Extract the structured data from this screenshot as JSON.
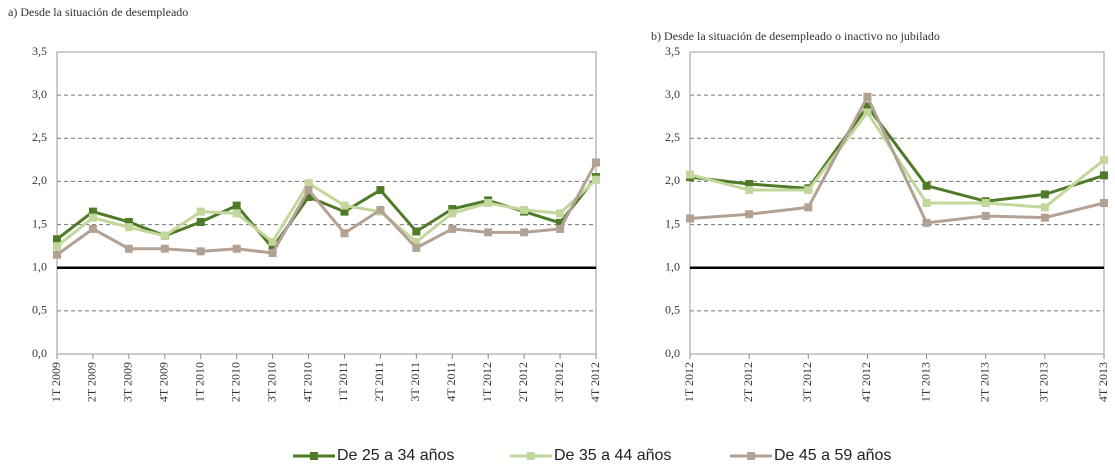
{
  "chart_data": [
    {
      "type": "line",
      "title": "a) Desde la situación de desempleado",
      "categories": [
        "1T 2009",
        "2T 2009",
        "3T 2009",
        "4T 2009",
        "1T 2010",
        "2T 2010",
        "3T 2010",
        "4T 2010",
        "1T 2011",
        "2T 2011",
        "3T 2011",
        "4T 2011",
        "1T 2012",
        "2T 2012",
        "3T 2012",
        "4T 2012"
      ],
      "series": [
        {
          "name": "De 25 a 34 años",
          "color": "#4f7a28",
          "values": [
            1.33,
            1.65,
            1.53,
            1.37,
            1.53,
            1.72,
            1.23,
            1.82,
            1.65,
            1.9,
            1.42,
            1.68,
            1.78,
            1.65,
            1.52,
            2.05
          ]
        },
        {
          "name": "De 35 a 44 años",
          "color": "#c3d69b",
          "values": [
            1.25,
            1.58,
            1.47,
            1.37,
            1.65,
            1.63,
            1.3,
            1.98,
            1.72,
            1.65,
            1.3,
            1.63,
            1.75,
            1.67,
            1.63,
            2.02
          ]
        },
        {
          "name": "De 45 a 59 años",
          "color": "#b3a193",
          "values": [
            1.15,
            1.45,
            1.22,
            1.22,
            1.19,
            1.22,
            1.17,
            1.9,
            1.4,
            1.67,
            1.23,
            1.45,
            1.41,
            1.41,
            1.45,
            2.22
          ]
        }
      ],
      "ylim": [
        0,
        3.5
      ],
      "yticks": [
        {
          "value": 0,
          "label": "0,0"
        },
        {
          "value": 0.5,
          "label": "0,5"
        },
        {
          "value": 1,
          "label": "1,0"
        },
        {
          "value": 1.5,
          "label": "1,5"
        },
        {
          "value": 2,
          "label": "2,0"
        },
        {
          "value": 2.5,
          "label": "2,5"
        },
        {
          "value": 3,
          "label": "3,0"
        },
        {
          "value": 3.5,
          "label": "3,5"
        }
      ],
      "grid": true,
      "reference_line": 1
    },
    {
      "type": "line",
      "title": "b) Desde la situación de desempleado o inactivo no jubilado",
      "categories": [
        "1T 2012",
        "2T 2012",
        "3T 2012",
        "4T 2012",
        "1T 2013",
        "2T 2013",
        "3T 2013",
        "4T 2013"
      ],
      "series": [
        {
          "color": "#4f7a28",
          "values": [
            2.05,
            1.97,
            1.92,
            2.87,
            1.95,
            1.77,
            1.85,
            2.07
          ]
        },
        {
          "color": "#c3d69b",
          "values": [
            2.08,
            1.9,
            1.9,
            2.8,
            1.75,
            1.75,
            1.7,
            2.25
          ]
        },
        {
          "color": "#b3a193",
          "values": [
            1.57,
            1.62,
            1.7,
            2.98,
            1.52,
            1.6,
            1.58,
            1.75
          ]
        }
      ],
      "ylim": [
        0,
        3.5
      ],
      "yticks": [
        {
          "value": 0,
          "label": "0,0"
        },
        {
          "value": 0.5,
          "label": "0,5"
        },
        {
          "value": 1,
          "label": "1,0"
        },
        {
          "value": 1.5,
          "label": "1,5"
        },
        {
          "value": 2,
          "label": "2,0"
        },
        {
          "value": 2.5,
          "label": "2,5"
        },
        {
          "value": 3,
          "label": "3,0"
        },
        {
          "value": 3.5,
          "label": "3,5"
        }
      ],
      "grid": true,
      "reference_line": 1
    }
  ]
}
